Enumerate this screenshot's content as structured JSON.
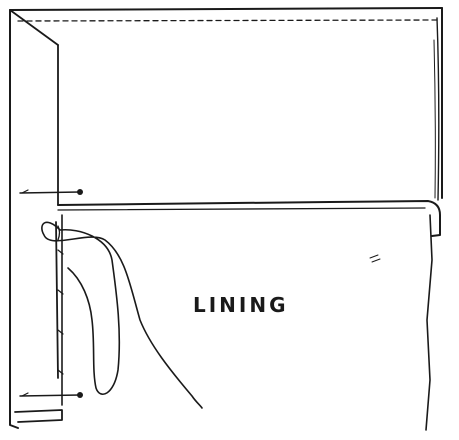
{
  "diagram": {
    "label": "LINING",
    "ink_color": "#1a1a1a",
    "background_color": "#ffffff"
  }
}
